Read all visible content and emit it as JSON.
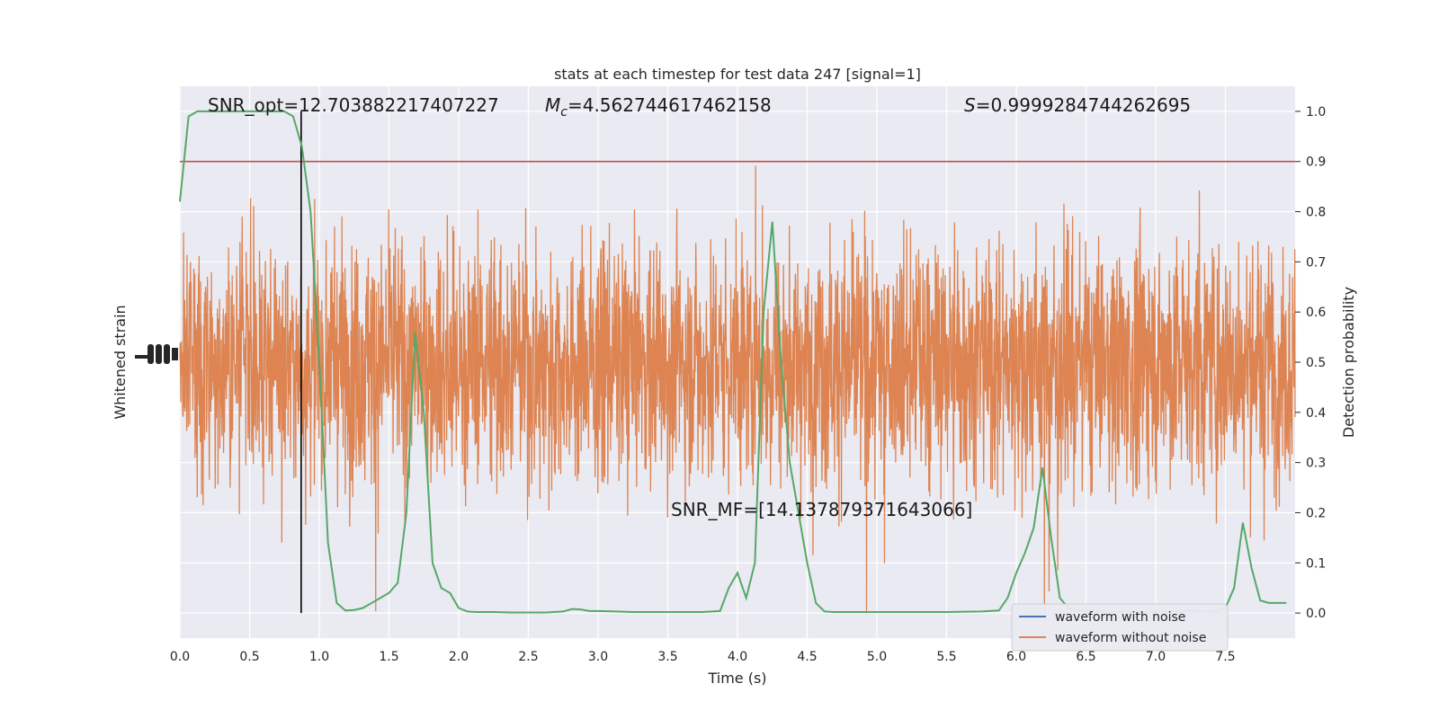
{
  "chart_data": {
    "type": "line",
    "title": "stats at each timestep for test data 247 [signal=1]",
    "xlabel": "Time (s)",
    "ylabel_left": "Whitened strain",
    "ylabel_right": "Detection probability",
    "xlim": [
      0.0,
      8.0
    ],
    "ylim_right": [
      -0.05,
      1.05
    ],
    "x_ticks": [
      "0.0",
      "0.5",
      "1.0",
      "1.5",
      "2.0",
      "2.5",
      "3.0",
      "3.5",
      "4.0",
      "4.5",
      "5.0",
      "5.5",
      "6.0",
      "6.5",
      "7.0",
      "7.5"
    ],
    "y_right_ticks": [
      "0.0",
      "0.1",
      "0.2",
      "0.3",
      "0.4",
      "0.5",
      "0.6",
      "0.7",
      "0.8",
      "0.9",
      "1.0"
    ],
    "grid": true,
    "legend_placement": "lower-right",
    "threshold": 0.9,
    "marker_time": 0.87,
    "annotations": {
      "snr_opt_label": "SNR_opt=12.703882217407227",
      "mc_symbol": "M",
      "mc_sub": "c",
      "mc_value": "=4.562744617462158",
      "s_symbol": "S",
      "s_value": "=0.9999284744262695",
      "snr_mf_label": "SNR_MF=[14.137879371643066]"
    },
    "series": [
      {
        "name": "waveform with noise",
        "color": "#4c72b0"
      },
      {
        "name": "waveform without noise",
        "color": "#dd8452"
      }
    ],
    "detection_probability": {
      "color": "#55a868",
      "x": [
        0.0,
        0.0625,
        0.125,
        0.1875,
        0.25,
        0.3125,
        0.375,
        0.4375,
        0.5,
        0.5625,
        0.625,
        0.6875,
        0.75,
        0.8125,
        0.875,
        0.9375,
        1.0,
        1.0625,
        1.125,
        1.1875,
        1.25,
        1.3125,
        1.375,
        1.4375,
        1.5,
        1.5625,
        1.625,
        1.6875,
        1.75,
        1.8125,
        1.875,
        1.9375,
        2.0,
        2.0625,
        2.125,
        2.25,
        2.375,
        2.5,
        2.625,
        2.75,
        2.8125,
        2.875,
        2.9375,
        3.0,
        3.125,
        3.25,
        3.5,
        3.625,
        3.75,
        3.875,
        3.9375,
        4.0,
        4.0625,
        4.125,
        4.1875,
        4.25,
        4.3125,
        4.375,
        4.4375,
        4.5,
        4.5625,
        4.625,
        4.6875,
        4.75,
        4.875,
        5.0,
        5.25,
        5.5,
        5.75,
        5.875,
        5.9375,
        6.0,
        6.0625,
        6.125,
        6.1875,
        6.25,
        6.3125,
        6.375,
        6.4375,
        6.5,
        6.625,
        6.75,
        6.875,
        7.0,
        7.125,
        7.25,
        7.3125,
        7.375,
        7.4375,
        7.5,
        7.5625,
        7.625,
        7.6875,
        7.75,
        7.8125,
        7.875,
        7.9375
      ],
      "y": [
        0.82,
        0.99,
        1.0,
        1.0,
        1.0,
        1.0,
        1.0,
        1.0,
        1.0,
        1.0,
        1.0,
        1.0,
        1.0,
        0.99,
        0.93,
        0.8,
        0.5,
        0.14,
        0.02,
        0.005,
        0.006,
        0.01,
        0.02,
        0.03,
        0.04,
        0.06,
        0.2,
        0.56,
        0.4,
        0.1,
        0.05,
        0.04,
        0.01,
        0.003,
        0.002,
        0.002,
        0.001,
        0.001,
        0.001,
        0.003,
        0.008,
        0.007,
        0.004,
        0.004,
        0.003,
        0.002,
        0.002,
        0.002,
        0.002,
        0.004,
        0.05,
        0.08,
        0.03,
        0.1,
        0.6,
        0.78,
        0.5,
        0.3,
        0.2,
        0.1,
        0.02,
        0.003,
        0.002,
        0.002,
        0.002,
        0.002,
        0.002,
        0.002,
        0.003,
        0.005,
        0.03,
        0.08,
        0.12,
        0.17,
        0.29,
        0.15,
        0.03,
        0.01,
        0.005,
        0.005,
        0.003,
        0.003,
        0.003,
        0.003,
        0.003,
        0.005,
        0.003,
        0.003,
        0.004,
        0.01,
        0.05,
        0.18,
        0.09,
        0.025,
        0.02,
        0.02,
        0.02
      ]
    }
  }
}
